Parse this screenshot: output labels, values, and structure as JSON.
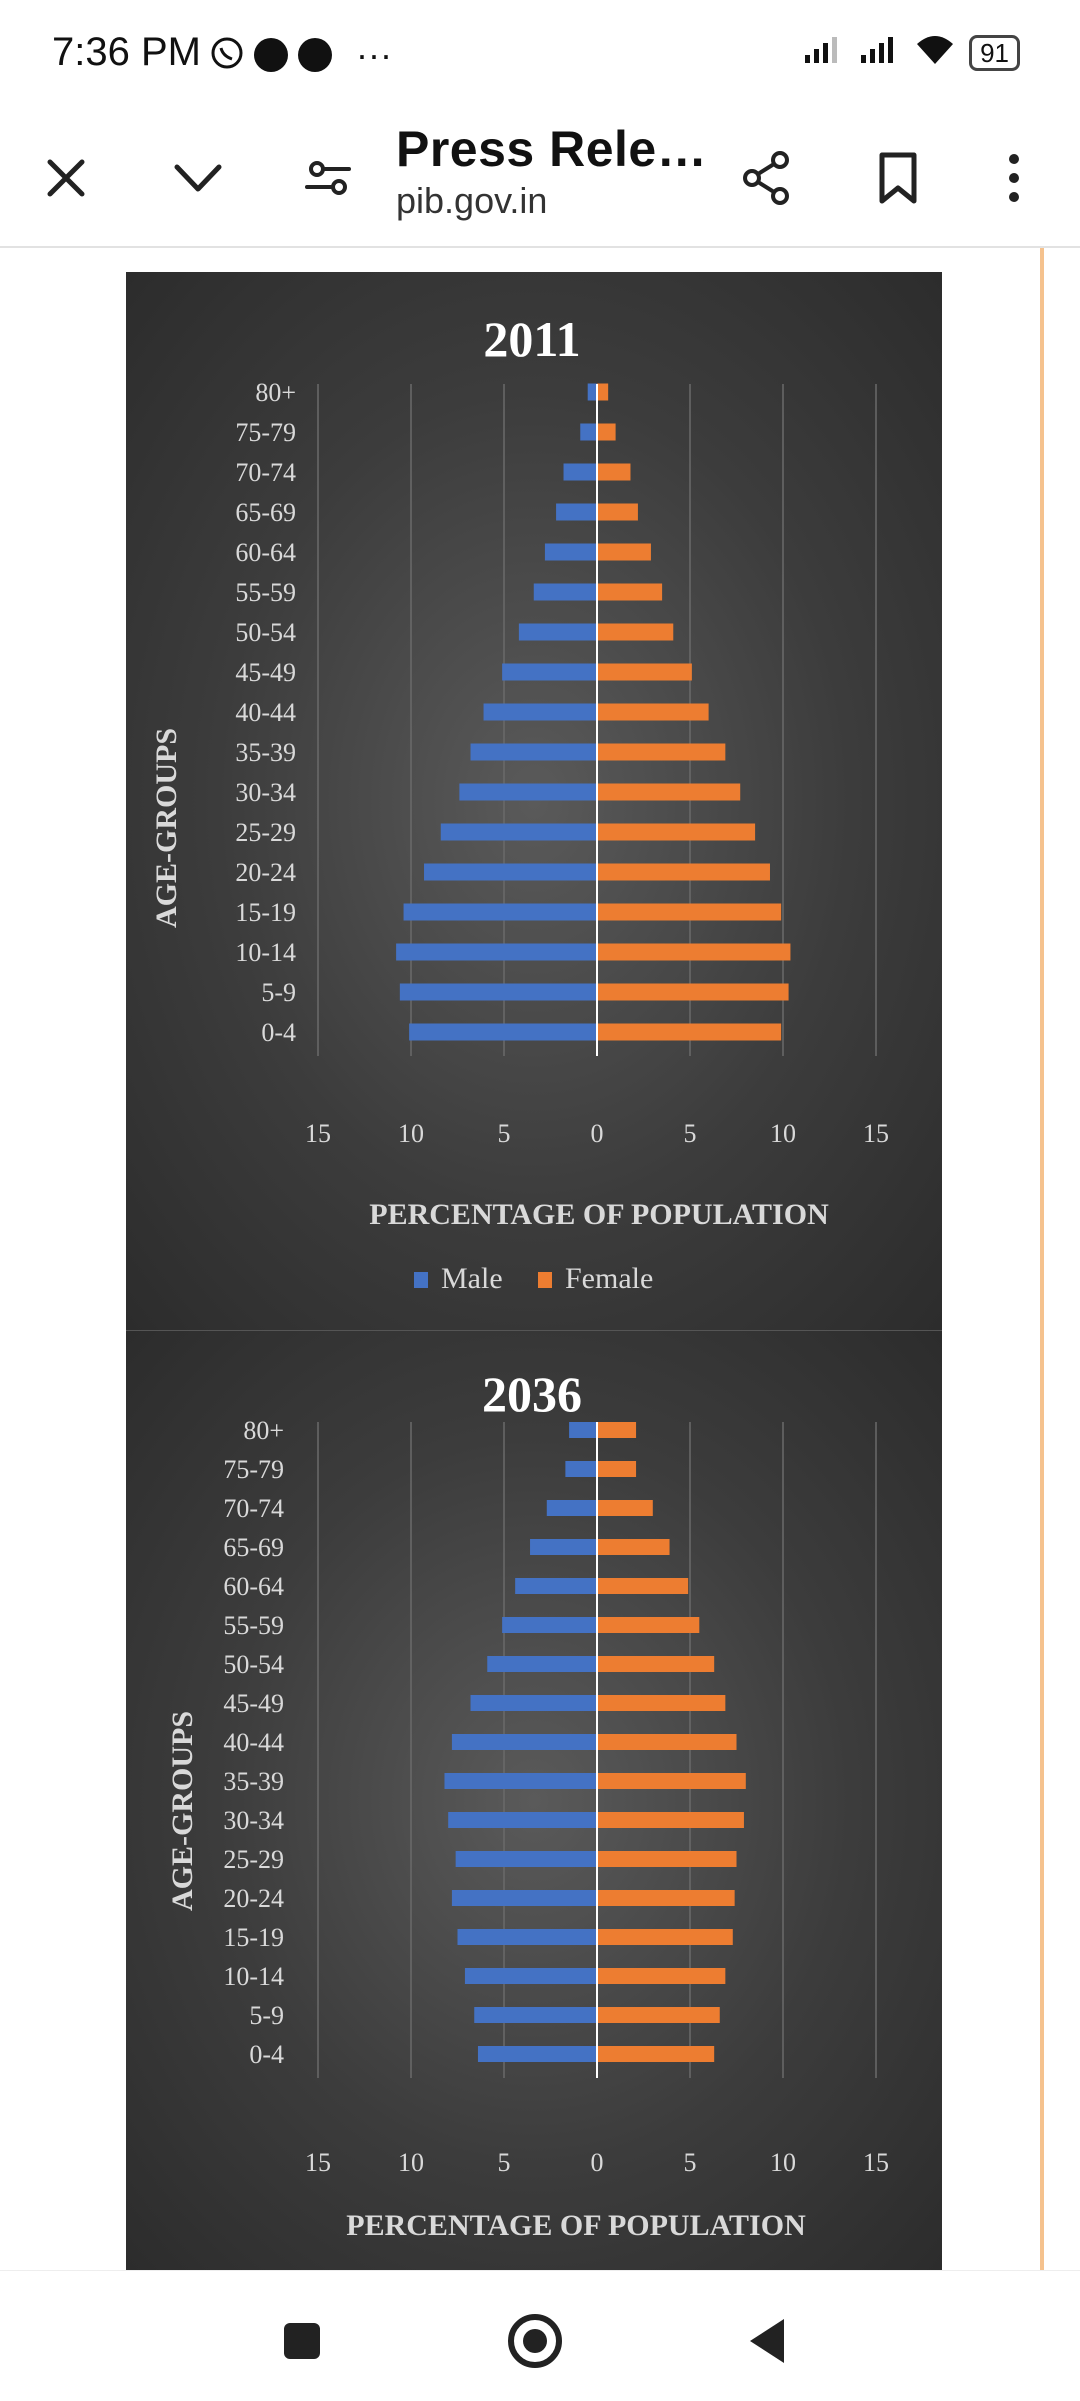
{
  "status": {
    "time": "7:36 PM",
    "battery": "91"
  },
  "toolbar": {
    "title": "Press Rele…",
    "url": "pib.gov.in"
  },
  "chart_data": [
    {
      "type": "bar",
      "title": "2011",
      "xlabel": "PERCENTAGE OF POPULATION",
      "ylabel": "AGE-GROUPS",
      "xlim": [
        -15,
        15
      ],
      "xticks": [
        "15",
        "10",
        "5",
        "0",
        "5",
        "10",
        "15"
      ],
      "categories": [
        "80+",
        "75-79",
        "70-74",
        "65-69",
        "60-64",
        "55-59",
        "50-54",
        "45-49",
        "40-44",
        "35-39",
        "30-34",
        "25-29",
        "20-24",
        "15-19",
        "10-14",
        "5-9",
        "0-4"
      ],
      "series": [
        {
          "name": "Male",
          "color": "#4472C4",
          "values": [
            0.5,
            0.9,
            1.8,
            2.2,
            2.8,
            3.4,
            4.2,
            5.1,
            6.1,
            6.8,
            7.4,
            8.4,
            9.3,
            10.4,
            10.8,
            10.6,
            10.1
          ]
        },
        {
          "name": "Female",
          "color": "#ED7D31",
          "values": [
            0.6,
            1.0,
            1.8,
            2.2,
            2.9,
            3.5,
            4.1,
            5.1,
            6.0,
            6.9,
            7.7,
            8.5,
            9.3,
            9.9,
            10.4,
            10.3,
            9.9
          ]
        }
      ],
      "legend": "bottom",
      "grid": true
    },
    {
      "type": "bar",
      "title": "2036",
      "xlabel": "PERCENTAGE OF POPULATION",
      "ylabel": "AGE-GROUPS",
      "xlim": [
        -15,
        15
      ],
      "xticks": [
        "15",
        "10",
        "5",
        "0",
        "5",
        "10",
        "15"
      ],
      "categories": [
        "80+",
        "75-79",
        "70-74",
        "65-69",
        "60-64",
        "55-59",
        "50-54",
        "45-49",
        "40-44",
        "35-39",
        "30-34",
        "25-29",
        "20-24",
        "15-19",
        "10-14",
        "5-9",
        "0-4"
      ],
      "series": [
        {
          "name": "Male",
          "color": "#4472C4",
          "values": [
            1.5,
            1.7,
            2.7,
            3.6,
            4.4,
            5.1,
            5.9,
            6.8,
            7.8,
            8.2,
            8.0,
            7.6,
            7.8,
            7.5,
            7.1,
            6.6,
            6.4
          ]
        },
        {
          "name": "Female",
          "color": "#ED7D31",
          "values": [
            2.1,
            2.1,
            3.0,
            3.9,
            4.9,
            5.5,
            6.3,
            6.9,
            7.5,
            8.0,
            7.9,
            7.5,
            7.4,
            7.3,
            6.9,
            6.6,
            6.3
          ]
        }
      ],
      "grid": true
    }
  ]
}
